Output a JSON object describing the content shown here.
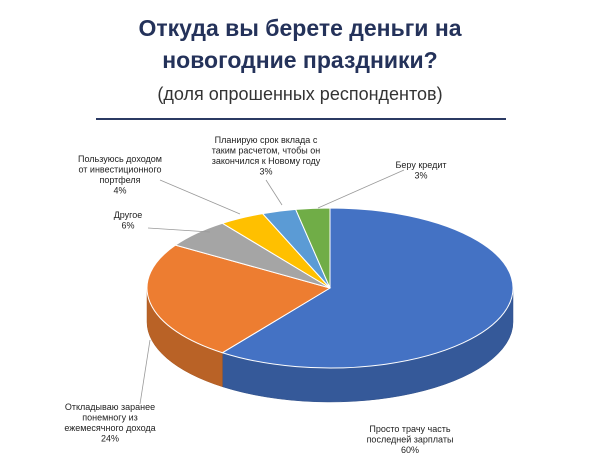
{
  "header": {
    "title_line1": "Откуда вы берете деньги на",
    "title_line2": "новогодние праздники?",
    "subtitle": "(доля опрошенных респондентов)"
  },
  "chart_data": {
    "type": "pie",
    "title": "Откуда вы берете деньги на новогодние праздники?",
    "subtitle": "(доля опрошенных респондентов)",
    "unit": "%",
    "three_d": true,
    "slices": [
      {
        "label": "Просто трачу часть последней зарплаты",
        "value": 60,
        "color": "#4472c4",
        "label_lines": [
          "Просто трачу часть",
          "последней зарплаты",
          "60%"
        ]
      },
      {
        "label": "Откладываю заранее понемногу из ежемесячного дохода",
        "value": 24,
        "color": "#ed7d31",
        "label_lines": [
          "Откладываю заранее",
          "понемногу из",
          "ежемесячного дохода",
          "24%"
        ]
      },
      {
        "label": "Другое",
        "value": 6,
        "color": "#a5a5a5",
        "label_lines": [
          "Другое",
          "6%"
        ]
      },
      {
        "label": "Пользуюсь доходом от инвестиционного портфеля",
        "value": 4,
        "color": "#ffc000",
        "label_lines": [
          "Пользуюсь доходом",
          "от инвестиционного",
          "портфеля",
          "4%"
        ]
      },
      {
        "label": "Планирую срок вклада с таким расчетом, чтобы он закончился к Новому году",
        "value": 3,
        "color": "#5b9bd5",
        "label_lines": [
          "Планирую срок вклада с",
          "таким расчетом, чтобы он",
          "закончился к Новому году",
          "3%"
        ]
      },
      {
        "label": "Беру кредит",
        "value": 3,
        "color": "#70ad47",
        "label_lines": [
          "Беру кредит",
          "3%"
        ]
      }
    ]
  }
}
